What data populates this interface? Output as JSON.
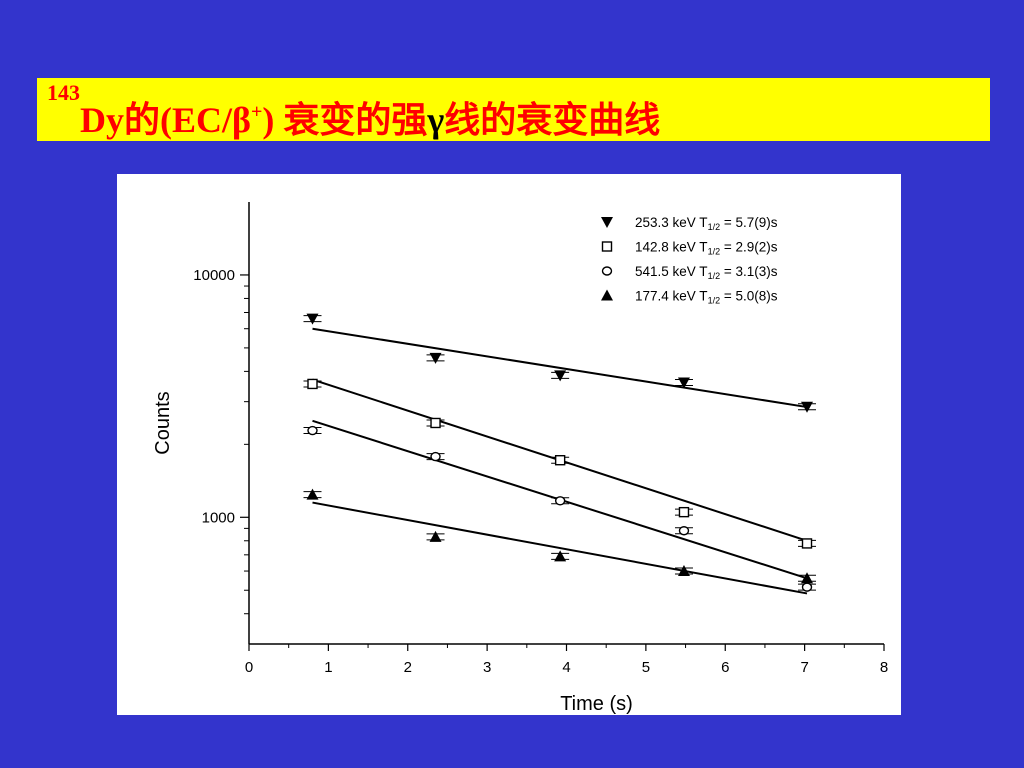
{
  "slide": {
    "title": {
      "mass_number": "143",
      "element": "Dy",
      "part1": "的(EC/",
      "beta": "β",
      "plus": "+",
      "part2": ") 衰变的强",
      "gamma": "γ",
      "part3": "线的衰变曲线"
    }
  },
  "colors": {
    "background": "#3334cc",
    "title_bar": "#ffff00",
    "title_text": "#ff0000",
    "gamma_symbol": "#000000"
  },
  "chart_data": {
    "type": "scatter",
    "title": "",
    "xlabel": "Time (s)",
    "ylabel": "Counts",
    "xlim": [
      0,
      8
    ],
    "ylim": [
      300,
      20000
    ],
    "yscale": "log",
    "grid": false,
    "legend_position": "top-right",
    "x_ticks": [
      "0",
      "1",
      "2",
      "3",
      "4",
      "5",
      "6",
      "7",
      "8"
    ],
    "y_ticks": [
      "1000",
      "10000"
    ],
    "series": [
      {
        "name": "253.3 keV T1/2 = 5.7(9)s",
        "legend_label": {
          "pre": "253.3 keV T",
          "sub": "1/2",
          "post": " = 5.7(9)s"
        },
        "marker": "triangle-down",
        "x": [
          0.8,
          2.35,
          3.92,
          5.48,
          7.03
        ],
        "y": [
          6600,
          4550,
          3850,
          3600,
          2860
        ],
        "fit": {
          "x": [
            0.8,
            7.03
          ],
          "y": [
            6000,
            2850
          ]
        }
      },
      {
        "name": "142.8 keV T1/2 = 2.9(2)s",
        "legend_label": {
          "pre": "142.8 keV T",
          "sub": "1/2",
          "post": " = 2.9(2)s"
        },
        "marker": "square-open",
        "x": [
          0.8,
          2.35,
          3.92,
          5.48,
          7.03
        ],
        "y": [
          3550,
          2450,
          1720,
          1050,
          780
        ],
        "fit": {
          "x": [
            0.8,
            7.03
          ],
          "y": [
            3700,
            800
          ]
        }
      },
      {
        "name": "541.5 keV T1/2 = 3.1(3)s",
        "legend_label": {
          "pre": "541.5 keV T",
          "sub": "1/2",
          "post": " = 3.1(3)s"
        },
        "marker": "circle-open",
        "x": [
          0.8,
          2.35,
          3.92,
          5.48,
          7.03
        ],
        "y": [
          2280,
          1780,
          1170,
          880,
          515
        ],
        "fit": {
          "x": [
            0.8,
            7.03
          ],
          "y": [
            2500,
            560
          ]
        }
      },
      {
        "name": "177.4 keV T1/2 = 5.0(8)s",
        "legend_label": {
          "pre": "177.4 keV T",
          "sub": "1/2",
          "post": " = 5.0(8)s"
        },
        "marker": "triangle-up",
        "x": [
          0.8,
          2.35,
          3.92,
          5.48,
          7.03
        ],
        "y": [
          1240,
          830,
          690,
          600,
          560
        ],
        "fit": {
          "x": [
            0.8,
            7.03
          ],
          "y": [
            1150,
            485
          ]
        }
      }
    ]
  }
}
